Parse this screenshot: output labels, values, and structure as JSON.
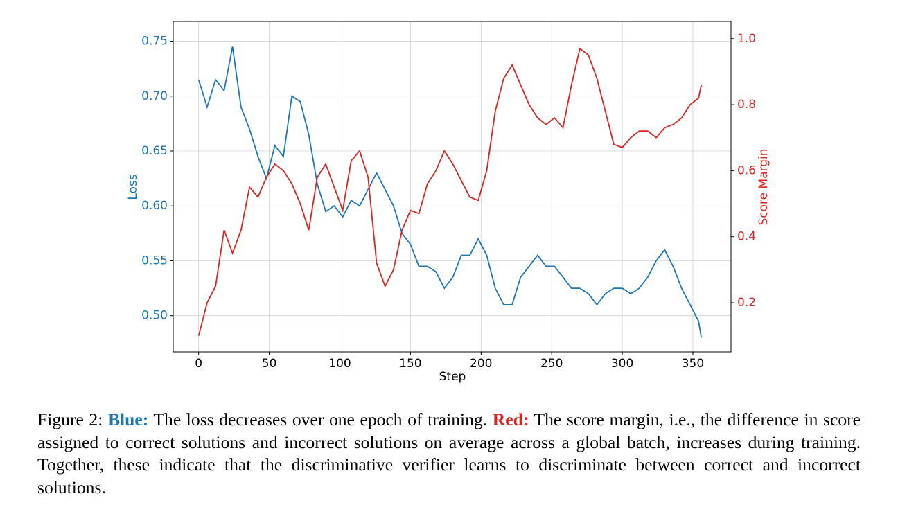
{
  "chart_data": {
    "type": "line",
    "xlabel": "Step",
    "ylabel": "Loss",
    "y2label": "Score Margin",
    "x": [
      0,
      6,
      12,
      18,
      24,
      30,
      36,
      42,
      48,
      54,
      60,
      66,
      72,
      78,
      84,
      90,
      96,
      102,
      108,
      114,
      120,
      126,
      132,
      138,
      144,
      150,
      156,
      162,
      168,
      174,
      180,
      186,
      192,
      198,
      204,
      210,
      216,
      222,
      228,
      234,
      240,
      246,
      252,
      258,
      264,
      270,
      276,
      282,
      288,
      294,
      300,
      306,
      312,
      318,
      324,
      330,
      336,
      342,
      348,
      354,
      356
    ],
    "series": [
      {
        "name": "Loss",
        "color": "#1f77b4",
        "axis": "y",
        "values": [
          0.715,
          0.69,
          0.715,
          0.705,
          0.745,
          0.69,
          0.67,
          0.645,
          0.625,
          0.655,
          0.645,
          0.7,
          0.695,
          0.665,
          0.62,
          0.595,
          0.6,
          0.59,
          0.605,
          0.6,
          0.615,
          0.63,
          0.615,
          0.6,
          0.575,
          0.565,
          0.545,
          0.545,
          0.54,
          0.525,
          0.535,
          0.555,
          0.555,
          0.57,
          0.555,
          0.525,
          0.51,
          0.51,
          0.535,
          0.545,
          0.555,
          0.545,
          0.545,
          0.535,
          0.525,
          0.525,
          0.52,
          0.51,
          0.52,
          0.525,
          0.525,
          0.52,
          0.525,
          0.535,
          0.55,
          0.56,
          0.545,
          0.525,
          0.51,
          0.495,
          0.48
        ]
      },
      {
        "name": "Score Margin",
        "color": "#d62728",
        "axis": "y2",
        "values": [
          0.1,
          0.2,
          0.25,
          0.42,
          0.35,
          0.42,
          0.55,
          0.52,
          0.58,
          0.62,
          0.6,
          0.56,
          0.5,
          0.42,
          0.58,
          0.62,
          0.55,
          0.48,
          0.63,
          0.66,
          0.58,
          0.32,
          0.25,
          0.3,
          0.42,
          0.48,
          0.47,
          0.56,
          0.6,
          0.66,
          0.62,
          0.57,
          0.52,
          0.51,
          0.6,
          0.78,
          0.88,
          0.92,
          0.86,
          0.8,
          0.76,
          0.74,
          0.76,
          0.73,
          0.86,
          0.97,
          0.95,
          0.88,
          0.78,
          0.68,
          0.67,
          0.7,
          0.72,
          0.72,
          0.7,
          0.73,
          0.74,
          0.76,
          0.8,
          0.82,
          0.86
        ]
      }
    ],
    "xlim": [
      -18,
      377
    ],
    "xticks": [
      0,
      50,
      100,
      150,
      200,
      250,
      300,
      350
    ],
    "ylim": [
      0.467,
      0.768
    ],
    "yticks": [
      {
        "value": 0.5,
        "label": "0.50"
      },
      {
        "value": 0.55,
        "label": "0.55"
      },
      {
        "value": 0.6,
        "label": "0.60"
      },
      {
        "value": 0.65,
        "label": "0.65"
      },
      {
        "value": 0.7,
        "label": "0.70"
      },
      {
        "value": 0.75,
        "label": "0.75"
      }
    ],
    "y2lim": [
      0.051,
      1.052
    ],
    "y2ticks": [
      0.2,
      0.4,
      0.6,
      0.8,
      {
        "value": 1.0,
        "label": "1.0"
      }
    ],
    "grid": true
  },
  "caption": {
    "figure_label": "Figure 2:",
    "blue_label": "Blue:",
    "blue_text": "The loss decreases over one epoch of training.",
    "red_label": "Red:",
    "red_text": "The score margin, i.e., the difference in score assigned to correct solutions and incorrect solutions on average across a global batch, increases during training. Together, these indicate that the discriminative verifier learns to discriminate between correct and incorrect solutions."
  }
}
